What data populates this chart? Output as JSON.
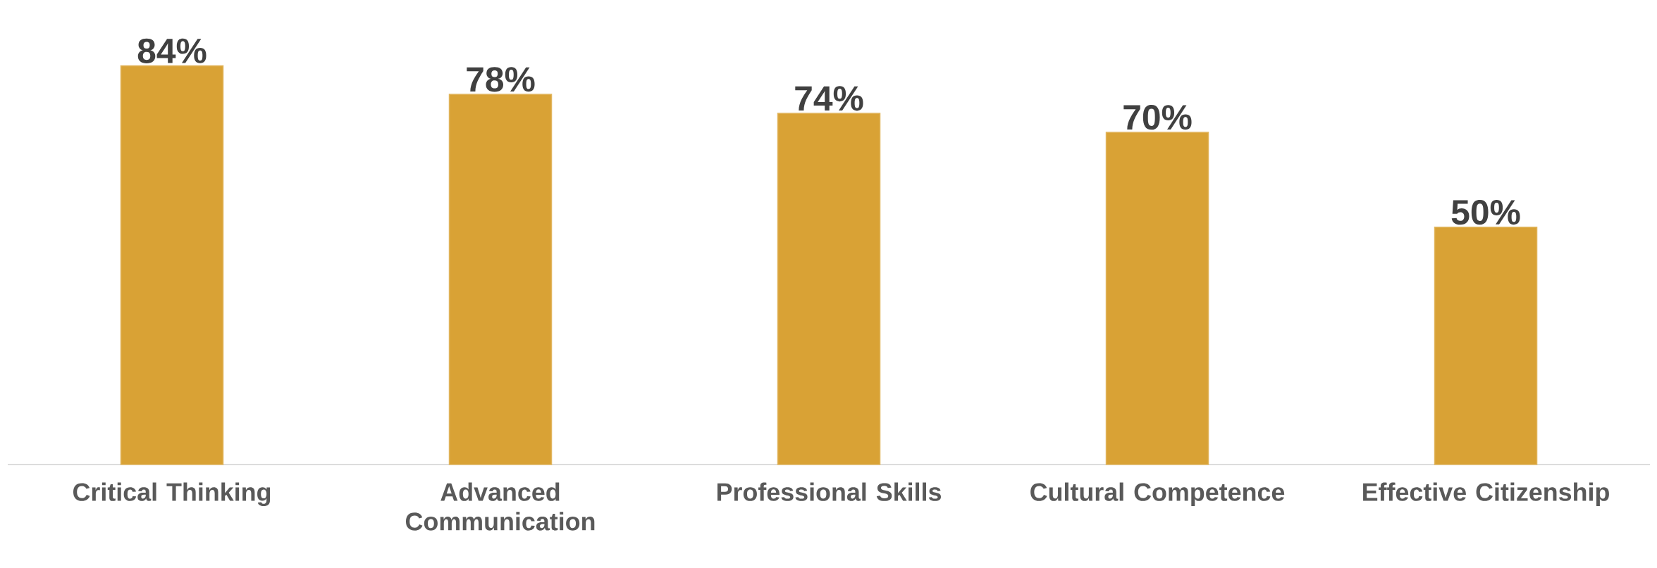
{
  "chart_data": {
    "type": "bar",
    "categories": [
      "Critical Thinking",
      "Advanced Communication",
      "Professional Skills",
      "Cultural Competence",
      "Effective Citizenship"
    ],
    "values": [
      84,
      78,
      74,
      70,
      50
    ],
    "value_labels": [
      "84%",
      "78%",
      "74%",
      "70%",
      "50%"
    ],
    "color": "#d9a235"
  }
}
